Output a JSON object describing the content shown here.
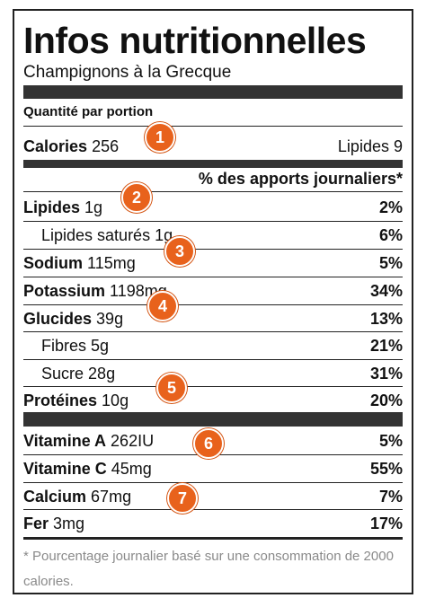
{
  "title": "Infos nutritionnelles",
  "subtitle": "Champignons à la Grecque",
  "serving_label": "Quantité par portion",
  "calories": {
    "label": "Calories",
    "value": "256",
    "fat_label": "Lipides",
    "fat_value": "9"
  },
  "dv_header": "% des apports journaliers*",
  "nutrients": [
    {
      "label": "Lipides",
      "amount": "1g",
      "pct": "2%"
    },
    {
      "label": "Lipides saturés",
      "amount": "1g",
      "pct": "6%"
    },
    {
      "label": "Sodium",
      "amount": "115mg",
      "pct": "5%"
    },
    {
      "label": "Potassium",
      "amount": "1198mg",
      "pct": "34%"
    },
    {
      "label": "Glucides",
      "amount": "39g",
      "pct": "13%"
    },
    {
      "label": "Fibres",
      "amount": "5g",
      "pct": "21%"
    },
    {
      "label": "Sucre",
      "amount": "28g",
      "pct": "31%"
    },
    {
      "label": "Protéines",
      "amount": "10g",
      "pct": "20%"
    }
  ],
  "vitamins": [
    {
      "label": "Vitamine A",
      "amount": "262IU",
      "pct": "5%"
    },
    {
      "label": "Vitamine C",
      "amount": "45mg",
      "pct": "55%"
    },
    {
      "label": "Calcium",
      "amount": "67mg",
      "pct": "7%"
    },
    {
      "label": "Fer",
      "amount": "3mg",
      "pct": "17%"
    }
  ],
  "footnote": "* Pourcentage journalier basé sur une consommation de 2000 calories.",
  "badges": [
    "1",
    "2",
    "3",
    "4",
    "5",
    "6",
    "7"
  ],
  "colors": {
    "badge": "#e8621c",
    "bar": "#333333",
    "footnote": "#8a8a8a"
  }
}
